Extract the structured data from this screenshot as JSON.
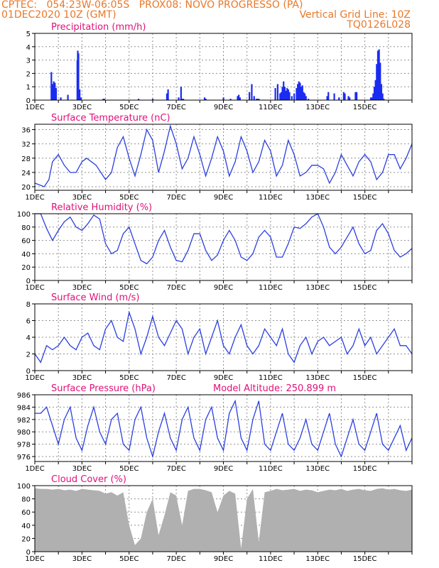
{
  "header": {
    "line1": "CPTEC:   054:23W-06:05S   PROX08: NOVO PROGRESSO (PA)",
    "line2_left": "01DEC2020 10Z (GMT)",
    "line2_right": "Vertical Grid Line: 10Z",
    "line3_right": "TQ0126L028"
  },
  "colors": {
    "header": "#e8782a",
    "title": "#e0107a",
    "line": "#2a3fe0",
    "bar": "#1a2cf0",
    "cloud": "#b0b0b0",
    "grid": "#909090"
  },
  "x_labels": [
    "1DEC",
    "3DEC",
    "5DEC",
    "7DEC",
    "9DEC",
    "11DEC",
    "13DEC",
    "15DEC"
  ],
  "chart_data": [
    {
      "type": "bar",
      "title": "Precipitation (mm/h)",
      "ylim": [
        0,
        5
      ],
      "yticks": [
        0,
        1,
        2,
        3,
        4,
        5
      ],
      "x_unit": "days since 01DEC2020 00Z",
      "x": [
        0.7,
        0.75,
        0.8,
        0.85,
        0.9,
        1.1,
        1.4,
        1.8,
        1.82,
        1.85,
        1.9,
        1.95,
        2.9,
        2.95,
        4.4,
        5.0,
        5.6,
        5.65,
        6.1,
        6.2,
        6.25,
        6.3,
        7.2,
        7.25,
        8.0,
        8.3,
        8.6,
        8.65,
        8.7,
        9.1,
        9.2,
        9.3,
        9.4,
        9.45,
        9.5,
        10.2,
        10.3,
        10.4,
        10.45,
        10.5,
        10.55,
        10.6,
        10.65,
        10.7,
        10.75,
        10.8,
        10.9,
        11.0,
        11.1,
        11.15,
        11.2,
        11.25,
        11.3,
        11.35,
        11.4,
        11.45,
        11.5,
        11.6,
        12.4,
        12.45,
        12.7,
        12.9,
        13.1,
        13.15,
        13.3,
        13.35,
        13.6,
        13.65,
        14.25,
        14.3,
        14.35,
        14.4,
        14.45,
        14.5,
        14.55,
        14.6,
        14.65,
        14.7,
        14.75,
        14.8
      ],
      "values": [
        2.1,
        1.2,
        1.4,
        1.3,
        0.9,
        0.2,
        0.4,
        3.0,
        3.7,
        3.5,
        0.8,
        0.2,
        0.1,
        0.1,
        0.1,
        0.1,
        0.5,
        0.8,
        0.2,
        1.0,
        0.1,
        0.1,
        0.2,
        0.1,
        0.2,
        0.1,
        0.3,
        0.4,
        0.2,
        0.6,
        1.2,
        0.3,
        0.1,
        0.1,
        0.1,
        0.9,
        1.2,
        0.5,
        0.6,
        1.0,
        1.4,
        1.0,
        0.7,
        0.9,
        0.8,
        0.6,
        0.3,
        0.5,
        0.9,
        1.2,
        1.4,
        1.3,
        1.0,
        1.1,
        0.6,
        0.5,
        0.3,
        0.1,
        0.3,
        0.6,
        0.5,
        0.2,
        0.6,
        0.5,
        0.3,
        0.2,
        0.6,
        0.6,
        0.2,
        0.2,
        0.5,
        1.0,
        1.5,
        2.7,
        3.7,
        3.8,
        2.8,
        1.2,
        0.5,
        0.1
      ]
    },
    {
      "type": "line",
      "title": "Surface Temperature (nC)",
      "ylim": [
        19,
        37.5
      ],
      "yticks": [
        20,
        24,
        28,
        32,
        36
      ],
      "x_unit": "days since 01DEC2020 00Z",
      "x": [
        0,
        0.4,
        0.6,
        0.75,
        1.0,
        1.25,
        1.5,
        1.75,
        2.0,
        2.2,
        2.4,
        2.6,
        3.0,
        3.25,
        3.5,
        3.75,
        4.0,
        4.25,
        4.5,
        4.75,
        5.0,
        5.25,
        5.5,
        5.75,
        6.0,
        6.25,
        6.5,
        6.75,
        7.0,
        7.25,
        7.5,
        7.75,
        8.0,
        8.25,
        8.5,
        8.75,
        9.0,
        9.25,
        9.5,
        9.75,
        10.0,
        10.25,
        10.5,
        10.75,
        11.0,
        11.25,
        11.5,
        11.75,
        12.0,
        12.25,
        12.5,
        12.75,
        13.0,
        13.25,
        13.5,
        13.75,
        14.0,
        14.25,
        14.5,
        14.75,
        15.0,
        15.25,
        15.5,
        15.75,
        16.0
      ],
      "values": [
        21,
        20,
        22,
        27,
        29,
        26,
        24,
        24,
        27,
        28,
        27,
        26,
        22,
        24,
        31,
        34,
        28,
        23,
        29,
        36,
        33,
        24,
        30,
        37,
        32,
        25,
        28,
        34,
        29,
        23,
        28,
        34,
        30,
        23,
        27,
        34,
        30,
        24,
        27,
        33,
        30,
        23,
        26,
        33,
        29,
        23,
        24,
        26,
        26,
        25,
        21,
        24,
        29,
        26,
        23,
        27,
        29,
        27,
        22,
        24,
        29,
        29,
        25,
        28,
        32
      ]
    },
    {
      "type": "line",
      "title": "Relative Humidity (%)",
      "ylim": [
        0,
        100
      ],
      "yticks": [
        0,
        20,
        40,
        60,
        80,
        100
      ],
      "x_unit": "days since 01DEC2020 00Z",
      "x": [
        0,
        0.25,
        0.5,
        0.75,
        1.0,
        1.25,
        1.5,
        1.75,
        2.0,
        2.25,
        2.5,
        2.75,
        3.0,
        3.25,
        3.5,
        3.75,
        4.0,
        4.25,
        4.5,
        4.75,
        5.0,
        5.25,
        5.5,
        5.75,
        6.0,
        6.25,
        6.5,
        6.75,
        7.0,
        7.25,
        7.5,
        7.75,
        8.0,
        8.25,
        8.5,
        8.75,
        9.0,
        9.25,
        9.5,
        9.75,
        10.0,
        10.25,
        10.5,
        10.75,
        11.0,
        11.25,
        11.5,
        11.75,
        12.0,
        12.25,
        12.5,
        12.75,
        13.0,
        13.25,
        13.5,
        13.75,
        14.0,
        14.25,
        14.5,
        14.75,
        15.0,
        15.25,
        15.5,
        15.75,
        16.0
      ],
      "values": [
        100,
        100,
        78,
        60,
        75,
        88,
        95,
        80,
        75,
        85,
        98,
        92,
        55,
        40,
        45,
        70,
        80,
        55,
        30,
        25,
        35,
        60,
        75,
        50,
        30,
        28,
        45,
        70,
        70,
        45,
        30,
        38,
        60,
        75,
        60,
        35,
        30,
        40,
        65,
        75,
        65,
        35,
        35,
        55,
        80,
        78,
        85,
        95,
        100,
        80,
        50,
        40,
        50,
        65,
        80,
        55,
        40,
        45,
        75,
        85,
        70,
        45,
        35,
        40,
        48
      ]
    },
    {
      "type": "line",
      "title": "Surface Wind (m/s)",
      "ylim": [
        0,
        8
      ],
      "yticks": [
        0,
        2,
        4,
        6,
        8
      ],
      "x_unit": "days since 01DEC2020 00Z",
      "x": [
        0,
        0.25,
        0.5,
        0.75,
        1.0,
        1.25,
        1.5,
        1.75,
        2.0,
        2.25,
        2.5,
        2.75,
        3.0,
        3.25,
        3.5,
        3.75,
        4.0,
        4.25,
        4.5,
        4.75,
        5.0,
        5.25,
        5.5,
        5.75,
        6.0,
        6.25,
        6.5,
        6.75,
        7.0,
        7.25,
        7.5,
        7.75,
        8.0,
        8.25,
        8.5,
        8.75,
        9.0,
        9.25,
        9.5,
        9.75,
        10.0,
        10.25,
        10.5,
        10.75,
        11.0,
        11.25,
        11.5,
        11.75,
        12.0,
        12.25,
        12.5,
        12.75,
        13.0,
        13.25,
        13.5,
        13.75,
        14.0,
        14.25,
        14.5,
        14.75,
        15.0,
        15.25,
        15.5,
        15.75,
        16.0
      ],
      "values": [
        2,
        1,
        3,
        2.5,
        3,
        4,
        3,
        2.5,
        4,
        4.5,
        3,
        2.5,
        5,
        6,
        4,
        3.5,
        7,
        5,
        2,
        4,
        6.5,
        4,
        3,
        4.5,
        6,
        5,
        2,
        4,
        5,
        2,
        4,
        6,
        3,
        2,
        4,
        5.5,
        3,
        2,
        3,
        5,
        4,
        3,
        5,
        2,
        1,
        3,
        4,
        2,
        3.5,
        4,
        3,
        3.5,
        4,
        2,
        3,
        5,
        3,
        4,
        2,
        3,
        4,
        5,
        3,
        3,
        2
      ]
    },
    {
      "type": "line",
      "title": "Surface Pressure (hPa)",
      "subtitle": "Model Altitude: 250.899 m",
      "ylim": [
        975.2,
        986
      ],
      "yticks": [
        976,
        978,
        980,
        982,
        984,
        986
      ],
      "x_unit": "days since 01DEC2020 00Z",
      "x": [
        0,
        0.25,
        0.5,
        0.75,
        1.0,
        1.25,
        1.5,
        1.75,
        2.0,
        2.25,
        2.5,
        2.75,
        3.0,
        3.25,
        3.5,
        3.75,
        4.0,
        4.25,
        4.5,
        4.75,
        5.0,
        5.25,
        5.5,
        5.75,
        6.0,
        6.25,
        6.5,
        6.75,
        7.0,
        7.25,
        7.5,
        7.75,
        8.0,
        8.25,
        8.5,
        8.75,
        9.0,
        9.25,
        9.5,
        9.75,
        10.0,
        10.25,
        10.5,
        10.75,
        11.0,
        11.25,
        11.5,
        11.75,
        12.0,
        12.25,
        12.5,
        12.75,
        13.0,
        13.25,
        13.5,
        13.75,
        14.0,
        14.25,
        14.5,
        14.75,
        15.0,
        15.25,
        15.5,
        15.75,
        16.0
      ],
      "values": [
        983,
        983,
        984,
        981,
        978,
        982,
        984,
        979,
        977,
        981,
        984,
        980,
        978,
        982,
        983,
        978,
        977,
        982,
        984,
        979,
        976,
        980,
        983,
        979,
        977,
        982,
        984,
        979,
        977,
        982,
        984,
        979,
        977,
        983,
        985,
        979,
        977,
        982,
        985,
        978,
        977,
        980,
        983,
        978,
        977,
        979,
        982,
        978,
        977,
        980,
        983,
        978,
        976,
        979,
        982,
        978,
        977,
        980,
        983,
        978,
        977,
        979,
        981,
        977,
        979
      ]
    },
    {
      "type": "area",
      "title": "Cloud Cover (%)",
      "ylim": [
        0,
        100
      ],
      "yticks": [
        0,
        20,
        40,
        60,
        80,
        100
      ],
      "x_unit": "days since 01DEC2020 00Z",
      "x": [
        0,
        0.25,
        0.5,
        0.75,
        1.0,
        1.25,
        1.5,
        1.75,
        2.0,
        2.25,
        2.5,
        2.75,
        3.0,
        3.25,
        3.5,
        3.75,
        4.0,
        4.25,
        4.5,
        4.75,
        5.0,
        5.25,
        5.5,
        5.75,
        6.0,
        6.25,
        6.5,
        6.75,
        7.0,
        7.25,
        7.5,
        7.75,
        8.0,
        8.25,
        8.5,
        8.75,
        9.0,
        9.25,
        9.5,
        9.75,
        10.0,
        10.25,
        10.5,
        10.75,
        11.0,
        11.25,
        11.5,
        11.75,
        12.0,
        12.25,
        12.5,
        12.75,
        13.0,
        13.25,
        13.5,
        13.75,
        14.0,
        14.25,
        14.5,
        14.75,
        15.0,
        15.25,
        15.5,
        15.75,
        16.0
      ],
      "values": [
        96,
        95,
        95,
        94,
        95,
        93,
        94,
        92,
        95,
        94,
        93,
        92,
        88,
        90,
        85,
        90,
        40,
        10,
        20,
        60,
        80,
        25,
        55,
        90,
        85,
        40,
        92,
        95,
        95,
        93,
        90,
        60,
        85,
        92,
        88,
        5,
        80,
        95,
        15,
        90,
        92,
        95,
        93,
        94,
        95,
        92,
        94,
        93,
        90,
        92,
        94,
        93,
        95,
        92,
        94,
        95,
        93,
        92,
        95,
        96,
        94,
        95,
        93,
        92,
        94
      ]
    }
  ]
}
